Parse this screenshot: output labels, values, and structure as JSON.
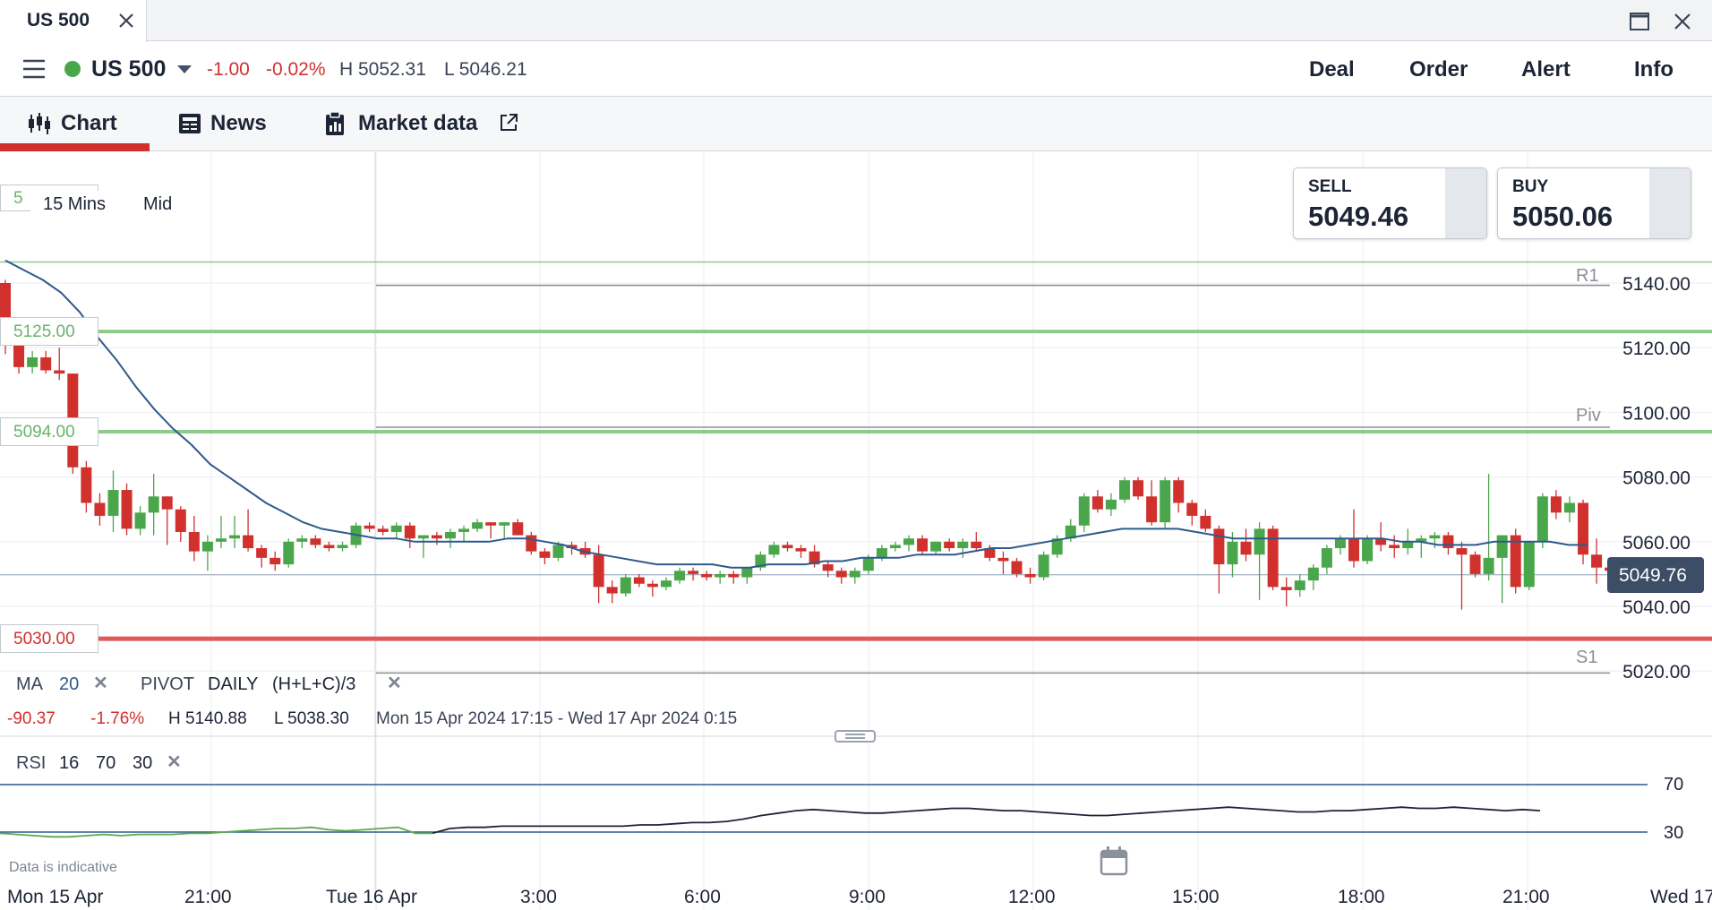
{
  "window": {
    "tab_title": "US 500"
  },
  "header": {
    "instrument": "US 500",
    "change": "-1.00",
    "change_pct": "-0.02%",
    "high": "H 5052.31",
    "low": "L 5046.21",
    "links": [
      "Deal",
      "Order",
      "Alert",
      "Info"
    ]
  },
  "tabs": [
    {
      "label": "Chart",
      "icon": "candlestick-icon",
      "active": true
    },
    {
      "label": "News",
      "icon": "newspaper-icon",
      "active": false
    },
    {
      "label": "Market data",
      "icon": "clipboard-icon",
      "external_icon": "external-link-icon",
      "active": false
    }
  ],
  "chart_settings": {
    "interval": "15 Mins",
    "price_type": "Mid",
    "clipped_label": "5"
  },
  "ticket": {
    "sell": {
      "label": "SELL",
      "price": "5049.46"
    },
    "buy": {
      "label": "BUY",
      "price": "5050.06"
    }
  },
  "indicators": {
    "ma": {
      "label": "MA",
      "period": "20"
    },
    "pivot": {
      "label": "PIVOT",
      "period": "DAILY",
      "formula": "(H+L+C)/3"
    },
    "rsi": {
      "label": "RSI",
      "period": "16",
      "upper": "70",
      "lower": "30"
    }
  },
  "range_summary": {
    "change": "-90.37",
    "change_pct": "-1.76%",
    "high": "H 5140.88",
    "low": "L 5038.30",
    "period": "Mon 15 Apr 2024 17:15 - Wed 17 Apr 2024 0:15"
  },
  "footer_note": "Data is indicative",
  "colors": {
    "up": "#4aa64b",
    "down": "#d0312d",
    "ma": "#2e5a8c",
    "pivot": "#8c8f96",
    "hline_green": "#8fca8a",
    "hline_red": "#e05a5a",
    "rsi_green": "#5aa84e",
    "rsi_black": "#1c2436"
  },
  "chart_data": {
    "type": "candlestick",
    "instrument": "US 500",
    "interval": "15 Mins",
    "x_axis": {
      "labels": [
        "Mon 15 Apr",
        "21:00",
        "Tue 16 Apr",
        "3:00",
        "6:00",
        "9:00",
        "12:00",
        "15:00",
        "18:00",
        "21:00",
        "Wed 17"
      ]
    },
    "y_axis": {
      "ticks": [
        "5140.00",
        "5120.00",
        "5100.00",
        "5080.00",
        "5060.00",
        "5040.00",
        "5020.00"
      ],
      "range": [
        5017,
        5150
      ]
    },
    "current_price": "5049.76",
    "levels": {
      "pivot": [
        {
          "label": "R1",
          "value": 5139.3
        },
        {
          "label": "Piv",
          "value": 5095.4
        },
        {
          "label": "S1",
          "value": 5019.4
        }
      ],
      "horizontal_lines": [
        {
          "label": "5125.00",
          "value": 5125.0,
          "color": "green"
        },
        {
          "label": "5094.00",
          "value": 5094.0,
          "color": "green"
        },
        {
          "label": "5030.00",
          "value": 5030.0,
          "color": "red"
        }
      ],
      "upper_clipped_line": 5146.5
    },
    "candles_ohlc": [
      [
        5140,
        5141,
        5118,
        5121
      ],
      [
        5122,
        5124,
        5112,
        5114
      ],
      [
        5114,
        5119,
        5112,
        5117
      ],
      [
        5117,
        5119,
        5112,
        5113
      ],
      [
        5113,
        5120,
        5110,
        5112
      ],
      [
        5112,
        5112,
        5081,
        5083
      ],
      [
        5083,
        5085,
        5069,
        5072
      ],
      [
        5072,
        5075,
        5065,
        5068
      ],
      [
        5068,
        5082,
        5063,
        5076
      ],
      [
        5076,
        5078,
        5062,
        5064
      ],
      [
        5064,
        5071,
        5062,
        5069
      ],
      [
        5069,
        5081,
        5062,
        5074
      ],
      [
        5074,
        5074,
        5059,
        5070
      ],
      [
        5070,
        5071,
        5060,
        5063
      ],
      [
        5063,
        5068,
        5054,
        5057
      ],
      [
        5057,
        5062,
        5051,
        5060
      ],
      [
        5060,
        5068,
        5058,
        5061
      ],
      [
        5061,
        5068,
        5058,
        5062
      ],
      [
        5062,
        5070,
        5057,
        5058
      ],
      [
        5058,
        5059,
        5052,
        5055
      ],
      [
        5055,
        5057,
        5051,
        5053
      ],
      [
        5053,
        5061,
        5052,
        5060
      ],
      [
        5060,
        5062,
        5058,
        5061
      ],
      [
        5061,
        5062,
        5058,
        5059
      ],
      [
        5059,
        5060,
        5057,
        5058
      ],
      [
        5058,
        5060,
        5057,
        5059
      ],
      [
        5059,
        5066,
        5058,
        5065
      ],
      [
        5065,
        5066,
        5063,
        5064
      ],
      [
        5064,
        5065,
        5062,
        5063
      ],
      [
        5063,
        5066,
        5061,
        5065
      ],
      [
        5065,
        5066,
        5058,
        5061
      ],
      [
        5061,
        5062,
        5055,
        5062
      ],
      [
        5062,
        5063,
        5059,
        5061
      ],
      [
        5061,
        5064,
        5058,
        5063
      ],
      [
        5063,
        5065,
        5060,
        5064
      ],
      [
        5064,
        5067,
        5063,
        5066
      ],
      [
        5066,
        5066,
        5061,
        5065
      ],
      [
        5065,
        5066,
        5061,
        5066
      ],
      [
        5066,
        5067,
        5062,
        5062
      ],
      [
        5062,
        5063,
        5056,
        5057
      ],
      [
        5057,
        5058,
        5053,
        5055
      ],
      [
        5055,
        5060,
        5054,
        5059
      ],
      [
        5059,
        5060,
        5056,
        5058
      ],
      [
        5058,
        5060,
        5055,
        5056
      ],
      [
        5056,
        5059,
        5041,
        5046
      ],
      [
        5046,
        5048,
        5041,
        5044
      ],
      [
        5044,
        5050,
        5043,
        5049
      ],
      [
        5049,
        5050,
        5046,
        5047
      ],
      [
        5047,
        5048,
        5043,
        5046
      ],
      [
        5046,
        5049,
        5045,
        5048
      ],
      [
        5048,
        5052,
        5047,
        5051
      ],
      [
        5051,
        5052,
        5048,
        5050
      ],
      [
        5050,
        5051,
        5048,
        5049
      ],
      [
        5049,
        5051,
        5047,
        5050
      ],
      [
        5050,
        5051,
        5047,
        5049
      ],
      [
        5049,
        5052,
        5047,
        5052
      ],
      [
        5052,
        5057,
        5051,
        5056
      ],
      [
        5056,
        5060,
        5055,
        5059
      ],
      [
        5059,
        5060,
        5057,
        5058
      ],
      [
        5058,
        5059,
        5055,
        5057
      ],
      [
        5057,
        5059,
        5052,
        5053
      ],
      [
        5053,
        5054,
        5049,
        5051
      ],
      [
        5051,
        5052,
        5047,
        5049
      ],
      [
        5049,
        5052,
        5047,
        5051
      ],
      [
        5051,
        5056,
        5050,
        5055
      ],
      [
        5055,
        5059,
        5054,
        5058
      ],
      [
        5058,
        5060,
        5057,
        5059
      ],
      [
        5059,
        5062,
        5057,
        5061
      ],
      [
        5061,
        5062,
        5056,
        5057
      ],
      [
        5057,
        5060,
        5056,
        5060
      ],
      [
        5060,
        5061,
        5057,
        5058
      ],
      [
        5058,
        5061,
        5055,
        5060
      ],
      [
        5060,
        5063,
        5057,
        5058
      ],
      [
        5058,
        5059,
        5054,
        5055
      ],
      [
        5055,
        5057,
        5050,
        5054
      ],
      [
        5054,
        5055,
        5049,
        5050
      ],
      [
        5050,
        5052,
        5047,
        5049
      ],
      [
        5049,
        5057,
        5048,
        5056
      ],
      [
        5056,
        5062,
        5055,
        5061
      ],
      [
        5061,
        5067,
        5060,
        5065
      ],
      [
        5065,
        5075,
        5063,
        5074
      ],
      [
        5074,
        5076,
        5069,
        5070
      ],
      [
        5070,
        5075,
        5068,
        5073
      ],
      [
        5073,
        5080,
        5072,
        5079
      ],
      [
        5079,
        5080,
        5073,
        5074
      ],
      [
        5074,
        5079,
        5065,
        5066
      ],
      [
        5066,
        5080,
        5064,
        5079
      ],
      [
        5079,
        5080,
        5069,
        5072
      ],
      [
        5072,
        5073,
        5065,
        5068
      ],
      [
        5068,
        5070,
        5063,
        5064
      ],
      [
        5064,
        5065,
        5044,
        5053
      ],
      [
        5053,
        5063,
        5049,
        5060
      ],
      [
        5060,
        5064,
        5054,
        5056
      ],
      [
        5056,
        5066,
        5042,
        5064
      ],
      [
        5064,
        5065,
        5045,
        5046
      ],
      [
        5046,
        5049,
        5040,
        5045
      ],
      [
        5045,
        5050,
        5043,
        5048
      ],
      [
        5048,
        5053,
        5045,
        5052
      ],
      [
        5052,
        5059,
        5050,
        5058
      ],
      [
        5058,
        5062,
        5056,
        5061
      ],
      [
        5061,
        5070,
        5052,
        5054
      ],
      [
        5054,
        5062,
        5053,
        5061
      ],
      [
        5061,
        5066,
        5057,
        5059
      ],
      [
        5059,
        5062,
        5055,
        5058
      ],
      [
        5058,
        5064,
        5056,
        5060
      ],
      [
        5060,
        5062,
        5055,
        5061
      ],
      [
        5061,
        5063,
        5058,
        5062
      ],
      [
        5062,
        5063,
        5056,
        5058
      ],
      [
        5058,
        5060,
        5039,
        5056
      ],
      [
        5056,
        5057,
        5049,
        5050
      ],
      [
        5050,
        5081,
        5048,
        5055
      ],
      [
        5055,
        5062,
        5041,
        5062
      ],
      [
        5062,
        5064,
        5044,
        5046
      ],
      [
        5046,
        5060,
        5045,
        5060
      ],
      [
        5060,
        5075,
        5058,
        5074
      ],
      [
        5074,
        5076,
        5067,
        5069
      ],
      [
        5069,
        5074,
        5066,
        5072
      ],
      [
        5072,
        5073,
        5053,
        5056
      ],
      [
        5056,
        5061,
        5047,
        5052
      ],
      [
        5052,
        5054,
        5048,
        5051
      ],
      [
        5051,
        5052,
        5047,
        5050
      ]
    ],
    "ma_20": [
      5147,
      5144,
      5141,
      5137,
      5131,
      5123,
      5116,
      5108,
      5101,
      5095,
      5090,
      5084,
      5080,
      5076,
      5072,
      5069,
      5066,
      5064,
      5063,
      5062,
      5061,
      5061,
      5060,
      5060,
      5060,
      5060,
      5060,
      5061,
      5061,
      5060,
      5059,
      5057,
      5056,
      5055,
      5054,
      5053,
      5053,
      5053,
      5053,
      5052,
      5052,
      5053,
      5053,
      5053,
      5054,
      5054,
      5055,
      5055,
      5055,
      5056,
      5056,
      5056,
      5057,
      5058,
      5058,
      5059,
      5060,
      5061,
      5062,
      5063,
      5064,
      5064,
      5064,
      5064,
      5063,
      5062,
      5061,
      5061,
      5061,
      5061,
      5061,
      5061,
      5061,
      5061,
      5061,
      5060,
      5060,
      5059,
      5059,
      5059,
      5060,
      5060,
      5060,
      5060,
      5059,
      5059
    ],
    "rsi": [
      29,
      28,
      27,
      26,
      26,
      27,
      28,
      27,
      28,
      28,
      28,
      29,
      29,
      30,
      31,
      32,
      33,
      33,
      34,
      32,
      31,
      32,
      33,
      34,
      29,
      29,
      33,
      34,
      34,
      35,
      35,
      35,
      35,
      35,
      35,
      35,
      35,
      36,
      36,
      37,
      38,
      38,
      39,
      41,
      44,
      46,
      48,
      49,
      48,
      47,
      46,
      46,
      47,
      48,
      49,
      50,
      50,
      49,
      48,
      48,
      47,
      46,
      45,
      44,
      44,
      45,
      46,
      47,
      48,
      49,
      50,
      51,
      50,
      49,
      48,
      47,
      47,
      48,
      48,
      49,
      50,
      51,
      50,
      50,
      51,
      50,
      49,
      48,
      49,
      48
    ]
  }
}
